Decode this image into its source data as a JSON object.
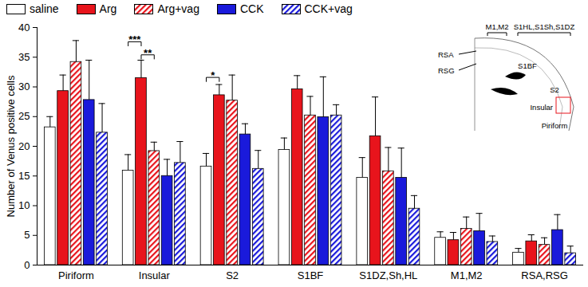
{
  "chart_data": {
    "type": "bar",
    "ylabel": "Number of Venus positive cells",
    "categories": [
      "Piriform",
      "Insular",
      "S2",
      "S1BF",
      "S1DZ,Sh,HL",
      "M1,M2",
      "RSA,RSG"
    ],
    "series": [
      {
        "name": "saline",
        "color": "#ffffff",
        "line_style": "solid",
        "values": [
          23.2,
          15.9,
          16.6,
          19.4,
          14.7,
          4.6,
          2.1
        ],
        "errors": [
          1.8,
          2.7,
          2.2,
          2.0,
          3.4,
          1.0,
          0.7
        ]
      },
      {
        "name": "Arg",
        "color": "#e8141c",
        "line_style": "solid",
        "values": [
          29.3,
          31.5,
          28.6,
          29.6,
          21.7,
          4.2,
          4.0
        ],
        "errors": [
          2.7,
          3.0,
          1.8,
          2.3,
          6.6,
          1.3,
          1.1
        ]
      },
      {
        "name": "Arg+vag",
        "color": "#e8141c",
        "line_style": "hatched",
        "values": [
          34.2,
          19.2,
          27.7,
          25.2,
          15.8,
          6.1,
          3.4
        ],
        "errors": [
          3.6,
          1.5,
          4.3,
          3.2,
          4.0,
          2.0,
          1.2
        ]
      },
      {
        "name": "CCK",
        "color": "#1a1adb",
        "line_style": "solid",
        "values": [
          27.8,
          15.0,
          22.0,
          24.9,
          14.7,
          5.7,
          5.9
        ],
        "errors": [
          6.7,
          2.8,
          1.8,
          6.8,
          5.0,
          3.0,
          2.6
        ]
      },
      {
        "name": "CCK+vag",
        "color": "#1a1adb",
        "line_style": "hatched",
        "values": [
          22.3,
          17.2,
          16.2,
          25.2,
          9.5,
          3.9,
          2.0
        ],
        "errors": [
          4.9,
          3.6,
          3.1,
          1.8,
          2.2,
          1.0,
          1.2
        ]
      }
    ],
    "ylim": [
      0,
      40
    ],
    "yticks": [
      0,
      5,
      10,
      15,
      20,
      25,
      30,
      35,
      40
    ],
    "legend": "top",
    "annotations": [
      {
        "category": "Insular",
        "from": "saline",
        "to": "Arg",
        "y": 37.6,
        "label": "***"
      },
      {
        "category": "Insular",
        "from": "Arg",
        "to": "Arg+vag",
        "y": 35.4,
        "label": "**"
      },
      {
        "category": "S2",
        "from": "saline",
        "to": "Arg",
        "y": 31.6,
        "label": "*"
      }
    ],
    "inset_labels": [
      "M1,M2",
      "S1HL,S1Sh,S1DZ",
      "RSA",
      "RSG",
      "S1BF",
      "S2",
      "Insular",
      "Piriform"
    ]
  }
}
